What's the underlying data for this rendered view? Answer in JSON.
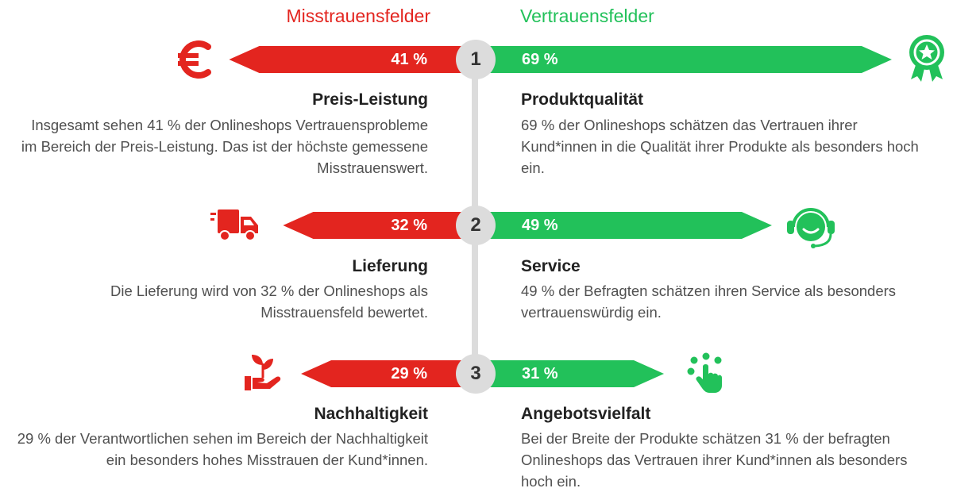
{
  "headers": {
    "left": "Misstrauensfelder",
    "right": "Vertrauensfelder"
  },
  "colors": {
    "distrust": "#e3251f",
    "trust": "#22c15a",
    "badge": "#dcdcdc",
    "spine": "#dcdcdc"
  },
  "chart_data": {
    "type": "bar",
    "categories": [
      "1",
      "2",
      "3"
    ],
    "series": [
      {
        "name": "Misstrauensfelder",
        "values": [
          41,
          32,
          29
        ]
      },
      {
        "name": "Vertrauensfelder",
        "values": [
          69,
          49,
          31
        ]
      }
    ],
    "ylim": [
      0,
      100
    ]
  },
  "rows": [
    {
      "rank": "1",
      "left": {
        "value_label": "41 %",
        "icon": "euro-icon",
        "title": "Preis-Leistung",
        "desc": "Insgesamt sehen 41 % der Onlineshops Vertrauensprobleme im Bereich der Preis-Leistung. Das ist der höchste gemessene Misstrauenswert."
      },
      "right": {
        "value_label": "69 %",
        "icon": "award-ribbon-icon",
        "title": "Produktqualität",
        "desc": "69 % der Onlineshops schätzen das Vertrauen ihrer Kund*innen in die Qualität ihrer Produkte als besonders hoch ein."
      }
    },
    {
      "rank": "2",
      "left": {
        "value_label": "32 %",
        "icon": "delivery-truck-icon",
        "title": "Lieferung",
        "desc": "Die Lieferung wird von 32 % der Onlineshops als Misstrauensfeld bewertet."
      },
      "right": {
        "value_label": "49 %",
        "icon": "headset-icon",
        "title": "Service",
        "desc": "49 % der Befragten schätzen ihren Service als besonders vertrauenswürdig ein."
      }
    },
    {
      "rank": "3",
      "left": {
        "value_label": "29 %",
        "icon": "plant-in-hand-icon",
        "title": "Nachhaltigkeit",
        "desc": "29 % der Verantwortlichen sehen im Bereich der Nachhaltigkeit ein besonders hohes Misstrauen der Kund*innen."
      },
      "right": {
        "value_label": "31 %",
        "icon": "hand-selection-icon",
        "title": "Angebotsvielfalt",
        "desc": "Bei der Breite der Produkte schätzen 31 % der befragten Onlineshops das Vertrauen ihrer Kund*innen als besonders hoch ein."
      }
    }
  ]
}
